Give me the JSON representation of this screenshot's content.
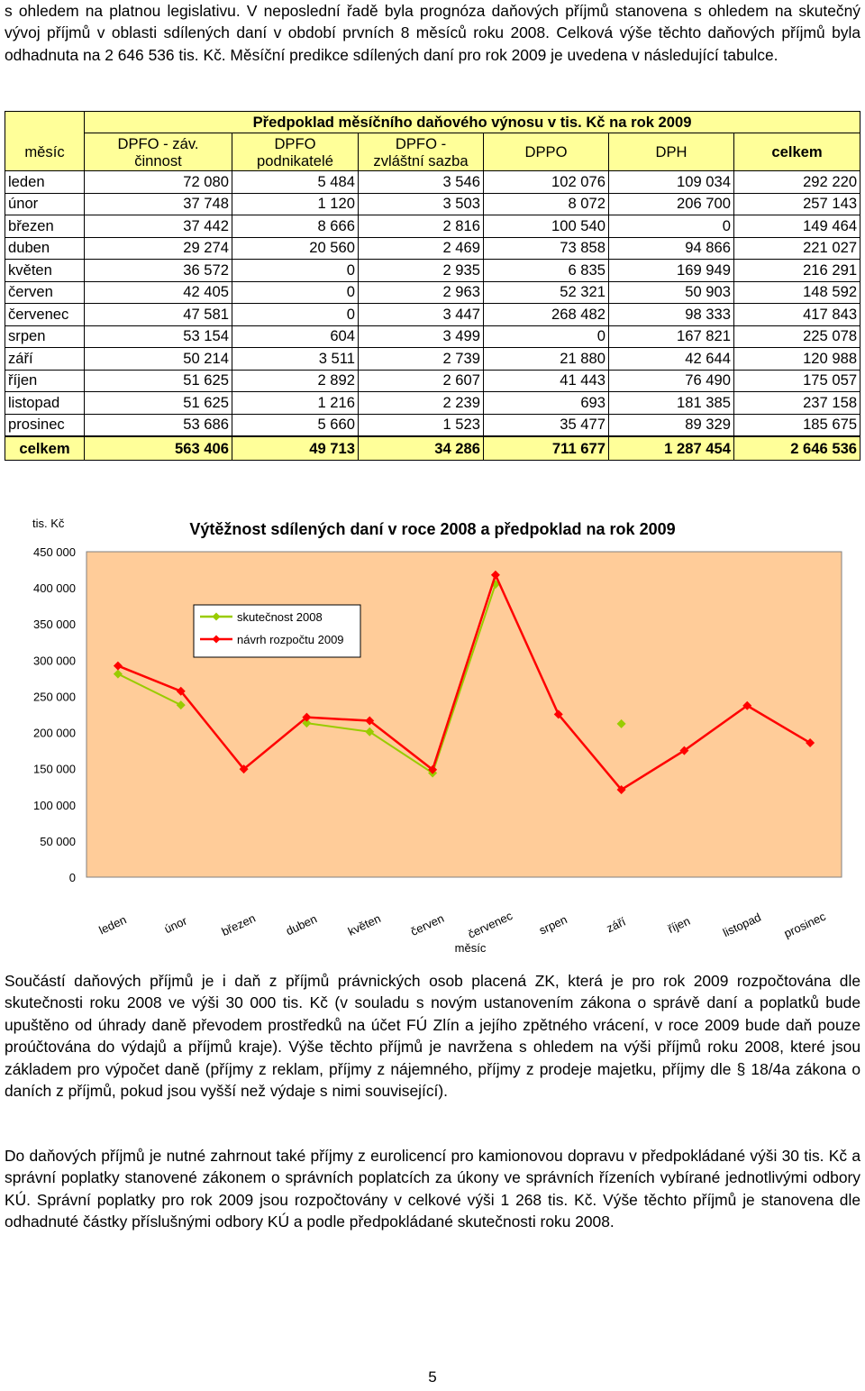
{
  "paragraphs": {
    "p1": "s ohledem na platnou legislativu. V neposlední řadě byla prognóza daňových příjmů stanovena s ohledem na skutečný vývoj příjmů v oblasti sdílených daní v období prvních 8 měsíců roku 2008. Celková výše těchto daňových příjmů byla odhadnuta na 2 646 536 tis. Kč. Měsíční predikce sdílených daní pro rok 2009 je uvedena v následující tabulce.",
    "p2": "Součástí daňových příjmů je i daň z příjmů právnických osob placená ZK, která je pro rok 2009 rozpočtována dle skutečnosti roku 2008 ve výši 30 000 tis. Kč (v souladu s novým ustanovením zákona o správě daní a poplatků bude upuštěno od úhrady daně převodem prostředků na účet FÚ Zlín a jejího zpětného vrácení, v roce 2009 bude daň pouze proúčtována do výdajů a příjmů kraje). Výše těchto příjmů je navržena s ohledem na výši příjmů roku 2008, které jsou základem pro výpočet daně (příjmy z reklam, příjmy z nájemného, příjmy z prodeje majetku, příjmy dle § 18/4a zákona o daních z příjmů, pokud jsou vyšší než výdaje s nimi související).",
    "p3": "Do daňových příjmů je nutné zahrnout také příjmy z eurolicencí pro kamionovou dopravu v předpokládané výši 30 tis. Kč a správní poplatky stanovené zákonem o správních poplatcích za úkony ve správních řízeních vybírané jednotlivými odbory KÚ. Správní poplatky pro rok 2009 jsou rozpočtovány v celkové výši 1 268 tis. Kč. Výše těchto příjmů je stanovena dle odhadnuté částky příslušnými odbory KÚ a podle předpokládané skutečnosti roku 2008."
  },
  "table": {
    "title": "Předpoklad měsíčního daňového výnosu v tis. Kč na rok 2009",
    "headers": {
      "month": "měsíc",
      "dpfo_zav_1": "DPFO - záv.",
      "dpfo_zav_2": "činnost",
      "dpfo_pod_1": "DPFO",
      "dpfo_pod_2": "podnikatelé",
      "dpfo_zvl_1": "DPFO -",
      "dpfo_zvl_2": "zvláštní sazba",
      "dppo": "DPPO",
      "dph": "DPH",
      "total": "celkem"
    },
    "rows": [
      {
        "m": "leden",
        "a": "72 080",
        "b": "5 484",
        "c": "3 546",
        "d": "102 076",
        "e": "109 034",
        "t": "292 220"
      },
      {
        "m": "únor",
        "a": "37 748",
        "b": "1 120",
        "c": "3 503",
        "d": "8 072",
        "e": "206 700",
        "t": "257 143"
      },
      {
        "m": "březen",
        "a": "37 442",
        "b": "8 666",
        "c": "2 816",
        "d": "100 540",
        "e": "0",
        "t": "149 464"
      },
      {
        "m": "duben",
        "a": "29 274",
        "b": "20 560",
        "c": "2 469",
        "d": "73 858",
        "e": "94 866",
        "t": "221 027"
      },
      {
        "m": "květen",
        "a": "36 572",
        "b": "0",
        "c": "2 935",
        "d": "6 835",
        "e": "169 949",
        "t": "216 291"
      },
      {
        "m": "červen",
        "a": "42 405",
        "b": "0",
        "c": "2 963",
        "d": "52 321",
        "e": "50 903",
        "t": "148 592"
      },
      {
        "m": "červenec",
        "a": "47 581",
        "b": "0",
        "c": "3 447",
        "d": "268 482",
        "e": "98 333",
        "t": "417 843"
      },
      {
        "m": "srpen",
        "a": "53 154",
        "b": "604",
        "c": "3 499",
        "d": "0",
        "e": "167 821",
        "t": "225 078"
      },
      {
        "m": "září",
        "a": "50 214",
        "b": "3 511",
        "c": "2 739",
        "d": "21 880",
        "e": "42 644",
        "t": "120 988"
      },
      {
        "m": "říjen",
        "a": "51 625",
        "b": "2 892",
        "c": "2 607",
        "d": "41 443",
        "e": "76 490",
        "t": "175 057"
      },
      {
        "m": "listopad",
        "a": "51 625",
        "b": "1 216",
        "c": "2 239",
        "d": "693",
        "e": "181 385",
        "t": "237 158"
      },
      {
        "m": "prosinec",
        "a": "53 686",
        "b": "5 660",
        "c": "1 523",
        "d": "35 477",
        "e": "89 329",
        "t": "185 675"
      }
    ],
    "total_row": {
      "m": "celkem",
      "a": "563 406",
      "b": "49 713",
      "c": "34 286",
      "d": "711 677",
      "e": "1 287 454",
      "t": "2 646 536"
    }
  },
  "chart_data": {
    "type": "line",
    "title": "Výtěžnost sdílených daní v roce 2008 a předpoklad na rok 2009",
    "unit_label": "tis. Kč",
    "xlabel": "měsíc",
    "ylabel": "",
    "ylim": [
      0,
      450000
    ],
    "yticks": [
      0,
      50000,
      100000,
      150000,
      200000,
      250000,
      300000,
      350000,
      400000,
      450000
    ],
    "ytick_labels": [
      "0",
      "50 000",
      "100 000",
      "150 000",
      "200 000",
      "250 000",
      "300 000",
      "350 000",
      "400 000",
      "450 000"
    ],
    "categories": [
      "leden",
      "únor",
      "březen",
      "duben",
      "květen",
      "červen",
      "červenec",
      "srpen",
      "září",
      "říjen",
      "listopad",
      "prosinec"
    ],
    "legend_position": "upper-left inside plot",
    "plot_background": "#ffcc99",
    "series": [
      {
        "name": "skutečnost 2008",
        "color": "#99cc00",
        "marker": "diamond",
        "values": [
          281000,
          238000,
          null,
          213000,
          201000,
          144000,
          405000,
          null,
          212000,
          null,
          null,
          null
        ]
      },
      {
        "name": "návrh rozpočtu 2009",
        "color": "#ff0000",
        "marker": "diamond",
        "values": [
          292220,
          257143,
          149464,
          221027,
          216291,
          148592,
          417843,
          225078,
          120988,
          175057,
          237158,
          185675
        ]
      }
    ]
  },
  "page_number": "5"
}
